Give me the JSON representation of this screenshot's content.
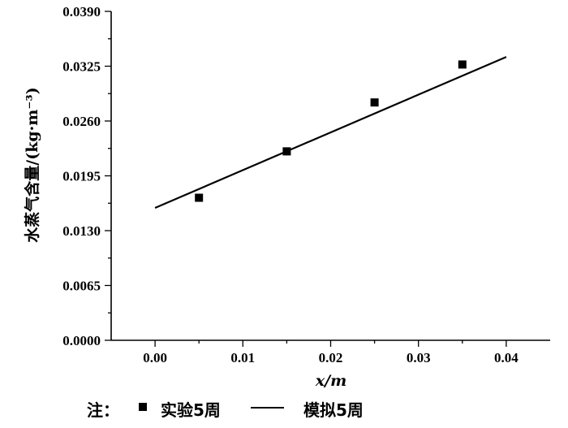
{
  "chart_data": {
    "type": "scatter",
    "title": "",
    "xlabel": "x/m",
    "ylabel": "水蒸气含量/(kg·m⁻³)",
    "xlim": [
      -0.005,
      0.045
    ],
    "ylim": [
      0.0,
      0.039
    ],
    "x_ticks": [
      "0.00",
      "0.01",
      "0.02",
      "0.03",
      "0.04"
    ],
    "y_ticks": [
      "0.0000",
      "0.0065",
      "0.0130",
      "0.0195",
      "0.0260",
      "0.0325",
      "0.0390"
    ],
    "series": [
      {
        "name": "实验5周",
        "type": "scatter",
        "marker": "square",
        "color": "#000000",
        "x": [
          0.005,
          0.015,
          0.025,
          0.035
        ],
        "y": [
          0.0169,
          0.0224,
          0.0282,
          0.0327
        ]
      },
      {
        "name": "模拟5周",
        "type": "line",
        "color": "#000000",
        "x": [
          0.0,
          0.04
        ],
        "y": [
          0.0157,
          0.0336
        ]
      }
    ],
    "legend": {
      "prefix": "注：",
      "position": "bottom-left"
    },
    "grid": false
  }
}
